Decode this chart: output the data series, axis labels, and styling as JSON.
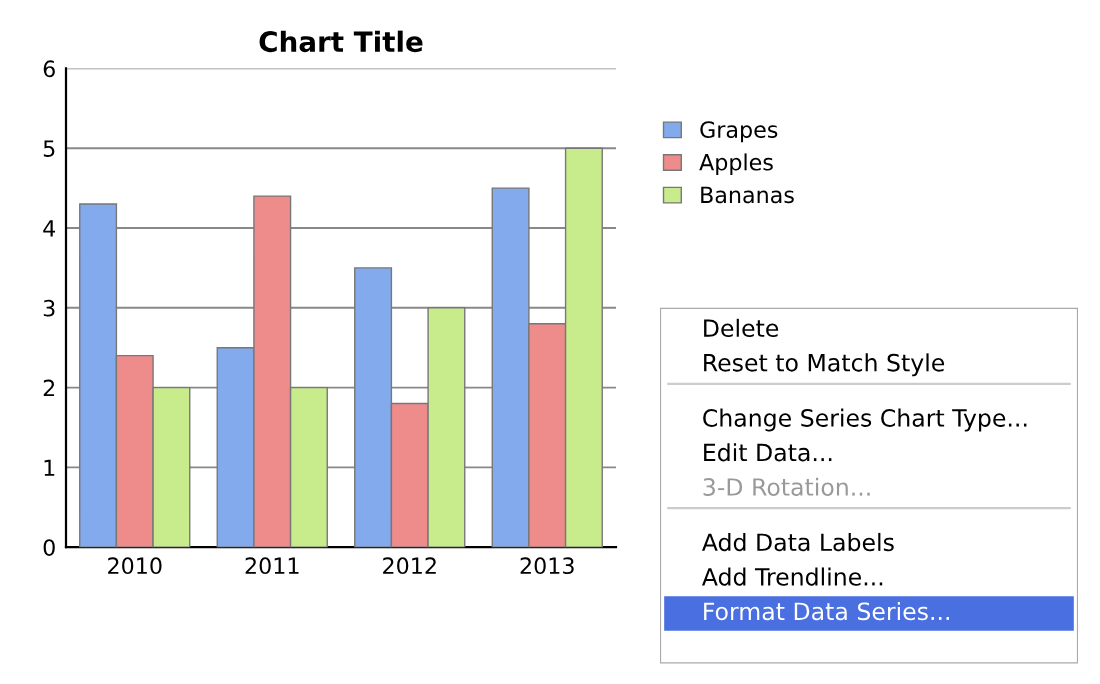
{
  "chart_data": {
    "type": "bar",
    "title": "Chart Title",
    "categories": [
      "2010",
      "2011",
      "2012",
      "2013"
    ],
    "series": [
      {
        "name": "Grapes",
        "color": "#84aaee",
        "values": [
          4.3,
          2.5,
          3.5,
          4.5
        ]
      },
      {
        "name": "Apples",
        "color": "#ee8c8c",
        "values": [
          2.4,
          4.4,
          1.8,
          2.8
        ]
      },
      {
        "name": "Bananas",
        "color": "#c8ec8c",
        "values": [
          2,
          2,
          3,
          5
        ]
      }
    ],
    "ylim": [
      0,
      6
    ],
    "yticks": [
      0,
      1,
      2,
      3,
      4,
      5,
      6
    ],
    "grid": "y",
    "legend": "right",
    "annotations": [
      "Delete",
      "Reset to Match Style",
      "Change Series Chart Type...",
      "Edit Data...",
      "3-D Rotation...",
      "Add Data Labels",
      "Add Trendline...",
      "Format Data Series..."
    ]
  }
}
